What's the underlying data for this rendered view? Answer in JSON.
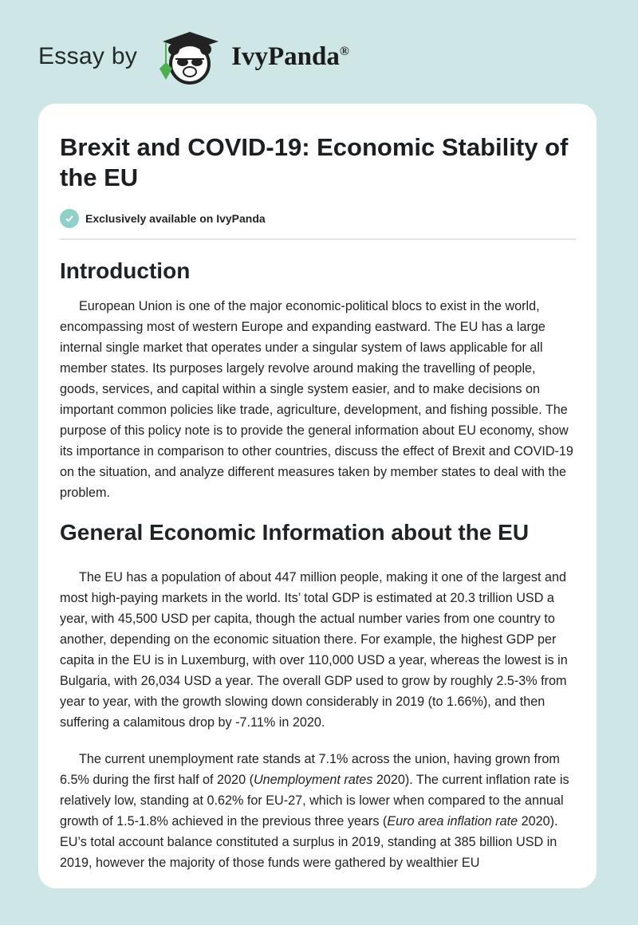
{
  "header": {
    "essay_by": "Essay by",
    "brand": "IvyPanda",
    "reg": "®"
  },
  "article": {
    "title": "Brexit and COVID-19: Economic Stability of the EU",
    "badge": "Exclusively available on IvyPanda",
    "sections": [
      {
        "heading": "Introduction",
        "p1": "European Union is one of the major economic-political blocs to exist in the world, encompassing most of western Europe and expanding eastward. The EU has a large internal single market that operates under a singular system of laws applicable for all member states. Its purposes largely revolve around making the travelling of people, goods, services, and capital within a single system easier, and to make decisions on important common policies like trade, agriculture, development, and fishing possible. The purpose of this policy note is to provide the general information about EU economy, show its importance in comparison to other countries, discuss the effect of Brexit and COVID-19 on the situation, and analyze different measures taken by member states to deal with the problem."
      },
      {
        "heading": "General Economic Information about the EU",
        "p1": "The EU has a population of about 447 million people, making it one of the largest and most high-paying markets in the world. Its’ total GDP is estimated at 20.3 trillion USD a year, with 45,500 USD per capita, though the actual number varies from one country to another, depending on the economic situation there. For example, the highest GDP per capita in the EU is in Luxemburg, with over 110,000 USD a year, whereas the lowest is in Bulgaria, with 26,034 USD a year. The overall GDP used to grow by roughly 2.5-3% from year to year, with the growth slowing down considerably in 2019 (to 1.66%), and then suffering a calamitous drop by -7.11% in 2020.",
        "p2a": "The current unemployment rate stands at 7.1% across the union, having grown from 6.5% during the first half of 2020 (",
        "p2cite1": "Unemployment rates",
        "p2b": " 2020). The current inflation rate is relatively low, standing at 0.62% for EU-27, which is lower when compared to the annual growth of 1.5-1.8% achieved in the previous three years (",
        "p2cite2": "Euro area inflation rate",
        "p2c": " 2020). EU’s total account balance constituted a surplus in 2019, standing at 385 billion USD in 2019, however the majority of those funds were gathered by wealthier EU"
      }
    ]
  },
  "colors": {
    "background": "#cfe6e7",
    "check": "#8fd0c9",
    "ivy_leaf": "#4caf50"
  }
}
